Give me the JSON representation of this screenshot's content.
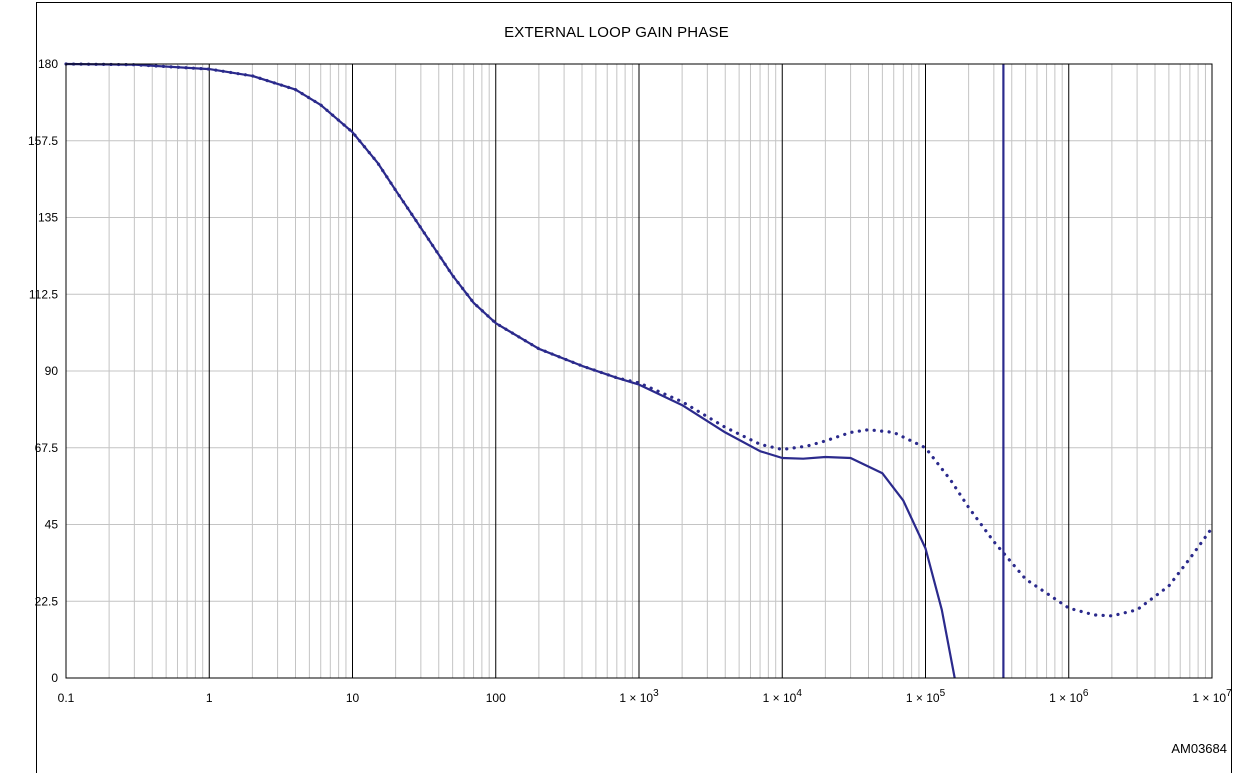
{
  "chart_data": {
    "type": "line",
    "title": "EXTERNAL LOOP GAIN PHASE",
    "xlabel": "",
    "ylabel": "",
    "xscale": "log",
    "xlim": [
      0.1,
      10000000
    ],
    "ylim": [
      0,
      180
    ],
    "grid": true,
    "legend": "none",
    "x_tick_labels": [
      {
        "text": "0.1",
        "exp": ""
      },
      {
        "text": "1",
        "exp": ""
      },
      {
        "text": "10",
        "exp": ""
      },
      {
        "text": "100",
        "exp": ""
      },
      {
        "text": "1 × 10",
        "exp": "3"
      },
      {
        "text": "1 × 10",
        "exp": "4"
      },
      {
        "text": "1 × 10",
        "exp": "5"
      },
      {
        "text": "1 × 10",
        "exp": "6"
      },
      {
        "text": "1 × 10",
        "exp": "7"
      }
    ],
    "x_tick_values": [
      0.1,
      1,
      10,
      100,
      1000,
      10000,
      100000,
      1000000,
      10000000
    ],
    "y_ticks": [
      "0",
      "22.5",
      "45",
      "67.5",
      "90",
      "112.5",
      "135",
      "157.5",
      "180"
    ],
    "y_tick_values": [
      0,
      22.5,
      45,
      67.5,
      90,
      112.5,
      135,
      157.5,
      180
    ],
    "series": [
      {
        "style": "solid",
        "color": "#2b2a8c",
        "x": [
          0.1,
          0.3,
          1,
          2,
          4,
          6,
          10,
          15,
          20,
          30,
          50,
          70,
          100,
          200,
          400,
          700,
          1000,
          2000,
          4000,
          7000,
          10000,
          14000,
          20000,
          30000,
          50000,
          70000,
          100000,
          130000,
          160000
        ],
        "y": [
          180,
          179.8,
          178.5,
          176.5,
          172.5,
          168,
          160,
          151,
          143,
          132,
          118,
          110,
          104,
          96.5,
          91.5,
          88,
          86,
          80,
          72,
          66.5,
          64.5,
          64.3,
          64.8,
          64.5,
          60,
          52,
          38,
          20,
          0
        ]
      },
      {
        "style": "dotted",
        "color": "#2b2a8c",
        "x": [
          0.1,
          0.3,
          1,
          2,
          4,
          6,
          10,
          15,
          20,
          30,
          50,
          70,
          100,
          200,
          400,
          700,
          1000,
          2000,
          4000,
          7000,
          10000,
          15000,
          20000,
          30000,
          40000,
          60000,
          100000,
          150000,
          200000,
          300000,
          500000,
          1000000,
          1500000,
          2000000,
          3000000,
          5000000,
          7000000,
          10000000
        ],
        "y": [
          180,
          179.8,
          178.5,
          176.5,
          172.5,
          168,
          160,
          151,
          143,
          132,
          118,
          110,
          104,
          96.5,
          91.5,
          88,
          86.5,
          81,
          73.5,
          68.5,
          67,
          68,
          69.5,
          72,
          72.8,
          72,
          67.5,
          58,
          50,
          40,
          29,
          20.5,
          18.5,
          18.2,
          20,
          27,
          35,
          44
        ]
      },
      {
        "style": "vertical-line",
        "color": "#2b2a8c",
        "x": [
          350000,
          350000
        ],
        "y": [
          0,
          180
        ]
      }
    ]
  },
  "figure_id": "AM03684"
}
